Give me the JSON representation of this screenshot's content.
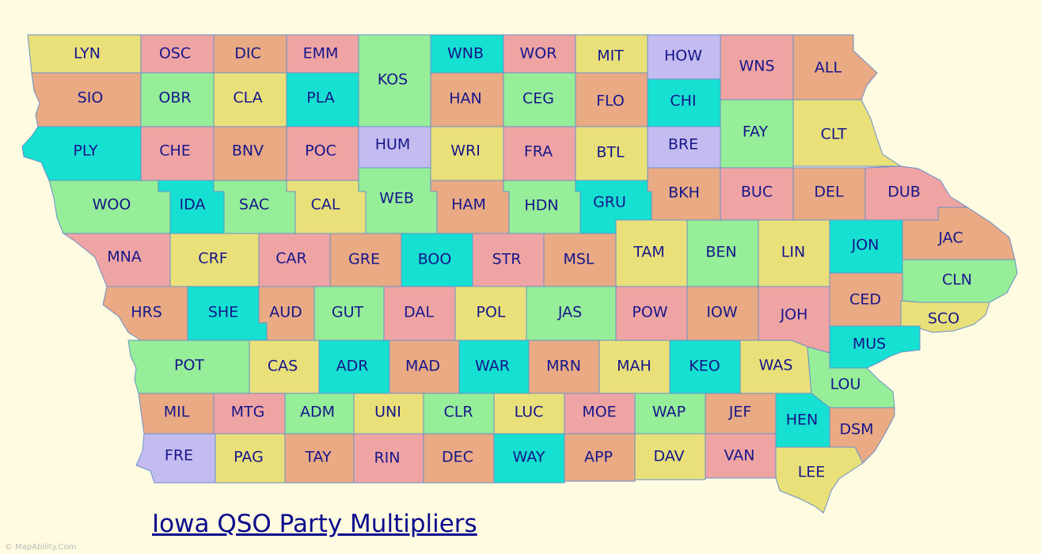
{
  "title": "Iowa QSO Party Multipliers",
  "credit": "© MapAbility.Com",
  "colors": {
    "background": "#fffbe0",
    "yellow": "#e9e07a",
    "pink": "#efa4a4",
    "orange": "#e9aa84",
    "green": "#96ee98",
    "cyan": "#15e0d1",
    "lavender": "#c4bcf0",
    "label": "#16168a",
    "border": "#6a8fc9"
  },
  "counties": [
    {
      "abbr": "LYN",
      "color": "yellow"
    },
    {
      "abbr": "OSC",
      "color": "pink"
    },
    {
      "abbr": "DIC",
      "color": "orange"
    },
    {
      "abbr": "EMM",
      "color": "pink"
    },
    {
      "abbr": "KOS",
      "color": "green"
    },
    {
      "abbr": "WNB",
      "color": "cyan"
    },
    {
      "abbr": "WOR",
      "color": "pink"
    },
    {
      "abbr": "MIT",
      "color": "yellow"
    },
    {
      "abbr": "HOW",
      "color": "lavender"
    },
    {
      "abbr": "WNS",
      "color": "pink"
    },
    {
      "abbr": "ALL",
      "color": "orange"
    },
    {
      "abbr": "SIO",
      "color": "orange"
    },
    {
      "abbr": "OBR",
      "color": "green"
    },
    {
      "abbr": "CLA",
      "color": "yellow"
    },
    {
      "abbr": "PLA",
      "color": "cyan"
    },
    {
      "abbr": "HAN",
      "color": "orange"
    },
    {
      "abbr": "CEG",
      "color": "green"
    },
    {
      "abbr": "FLO",
      "color": "orange"
    },
    {
      "abbr": "CHI",
      "color": "cyan"
    },
    {
      "abbr": "FAY",
      "color": "green"
    },
    {
      "abbr": "CLT",
      "color": "yellow"
    },
    {
      "abbr": "PLY",
      "color": "cyan"
    },
    {
      "abbr": "CHE",
      "color": "pink"
    },
    {
      "abbr": "BNV",
      "color": "orange"
    },
    {
      "abbr": "POC",
      "color": "pink"
    },
    {
      "abbr": "HUM",
      "color": "lavender"
    },
    {
      "abbr": "WRI",
      "color": "yellow"
    },
    {
      "abbr": "FRA",
      "color": "pink"
    },
    {
      "abbr": "BTL",
      "color": "yellow"
    },
    {
      "abbr": "BRE",
      "color": "lavender"
    },
    {
      "abbr": "WOO",
      "color": "green"
    },
    {
      "abbr": "IDA",
      "color": "cyan"
    },
    {
      "abbr": "SAC",
      "color": "green"
    },
    {
      "abbr": "CAL",
      "color": "yellow"
    },
    {
      "abbr": "WEB",
      "color": "green"
    },
    {
      "abbr": "HAM",
      "color": "orange"
    },
    {
      "abbr": "HDN",
      "color": "green"
    },
    {
      "abbr": "GRU",
      "color": "cyan"
    },
    {
      "abbr": "BKH",
      "color": "orange"
    },
    {
      "abbr": "BUC",
      "color": "pink"
    },
    {
      "abbr": "DEL",
      "color": "orange"
    },
    {
      "abbr": "DUB",
      "color": "pink"
    },
    {
      "abbr": "MNA",
      "color": "pink"
    },
    {
      "abbr": "CRF",
      "color": "yellow"
    },
    {
      "abbr": "CAR",
      "color": "pink"
    },
    {
      "abbr": "GRE",
      "color": "orange"
    },
    {
      "abbr": "BOO",
      "color": "cyan"
    },
    {
      "abbr": "STR",
      "color": "pink"
    },
    {
      "abbr": "MSL",
      "color": "orange"
    },
    {
      "abbr": "TAM",
      "color": "yellow"
    },
    {
      "abbr": "BEN",
      "color": "green"
    },
    {
      "abbr": "LIN",
      "color": "yellow"
    },
    {
      "abbr": "JON",
      "color": "cyan"
    },
    {
      "abbr": "JAC",
      "color": "orange"
    },
    {
      "abbr": "CLN",
      "color": "green"
    },
    {
      "abbr": "HRS",
      "color": "orange"
    },
    {
      "abbr": "SHE",
      "color": "cyan"
    },
    {
      "abbr": "AUD",
      "color": "orange"
    },
    {
      "abbr": "GUT",
      "color": "green"
    },
    {
      "abbr": "DAL",
      "color": "pink"
    },
    {
      "abbr": "POL",
      "color": "yellow"
    },
    {
      "abbr": "JAS",
      "color": "green"
    },
    {
      "abbr": "POW",
      "color": "pink"
    },
    {
      "abbr": "IOW",
      "color": "orange"
    },
    {
      "abbr": "JOH",
      "color": "pink"
    },
    {
      "abbr": "CED",
      "color": "orange"
    },
    {
      "abbr": "SCO",
      "color": "yellow"
    },
    {
      "abbr": "MUS",
      "color": "cyan"
    },
    {
      "abbr": "POT",
      "color": "green"
    },
    {
      "abbr": "CAS",
      "color": "yellow"
    },
    {
      "abbr": "ADR",
      "color": "cyan"
    },
    {
      "abbr": "MAD",
      "color": "orange"
    },
    {
      "abbr": "WAR",
      "color": "cyan"
    },
    {
      "abbr": "MRN",
      "color": "orange"
    },
    {
      "abbr": "MAH",
      "color": "yellow"
    },
    {
      "abbr": "KEO",
      "color": "cyan"
    },
    {
      "abbr": "WAS",
      "color": "yellow"
    },
    {
      "abbr": "LOU",
      "color": "green"
    },
    {
      "abbr": "MIL",
      "color": "orange"
    },
    {
      "abbr": "MTG",
      "color": "pink"
    },
    {
      "abbr": "ADM",
      "color": "green"
    },
    {
      "abbr": "UNI",
      "color": "yellow"
    },
    {
      "abbr": "CLR",
      "color": "green"
    },
    {
      "abbr": "LUC",
      "color": "yellow"
    },
    {
      "abbr": "MOE",
      "color": "pink"
    },
    {
      "abbr": "WAP",
      "color": "green"
    },
    {
      "abbr": "JEF",
      "color": "orange"
    },
    {
      "abbr": "HEN",
      "color": "cyan"
    },
    {
      "abbr": "DSM",
      "color": "orange"
    },
    {
      "abbr": "FRE",
      "color": "lavender"
    },
    {
      "abbr": "PAG",
      "color": "yellow"
    },
    {
      "abbr": "TAY",
      "color": "orange"
    },
    {
      "abbr": "RIN",
      "color": "pink"
    },
    {
      "abbr": "DEC",
      "color": "orange"
    },
    {
      "abbr": "WAY",
      "color": "cyan"
    },
    {
      "abbr": "APP",
      "color": "orange"
    },
    {
      "abbr": "DAV",
      "color": "yellow"
    },
    {
      "abbr": "VAN",
      "color": "pink"
    },
    {
      "abbr": "LEE",
      "color": "yellow"
    }
  ]
}
